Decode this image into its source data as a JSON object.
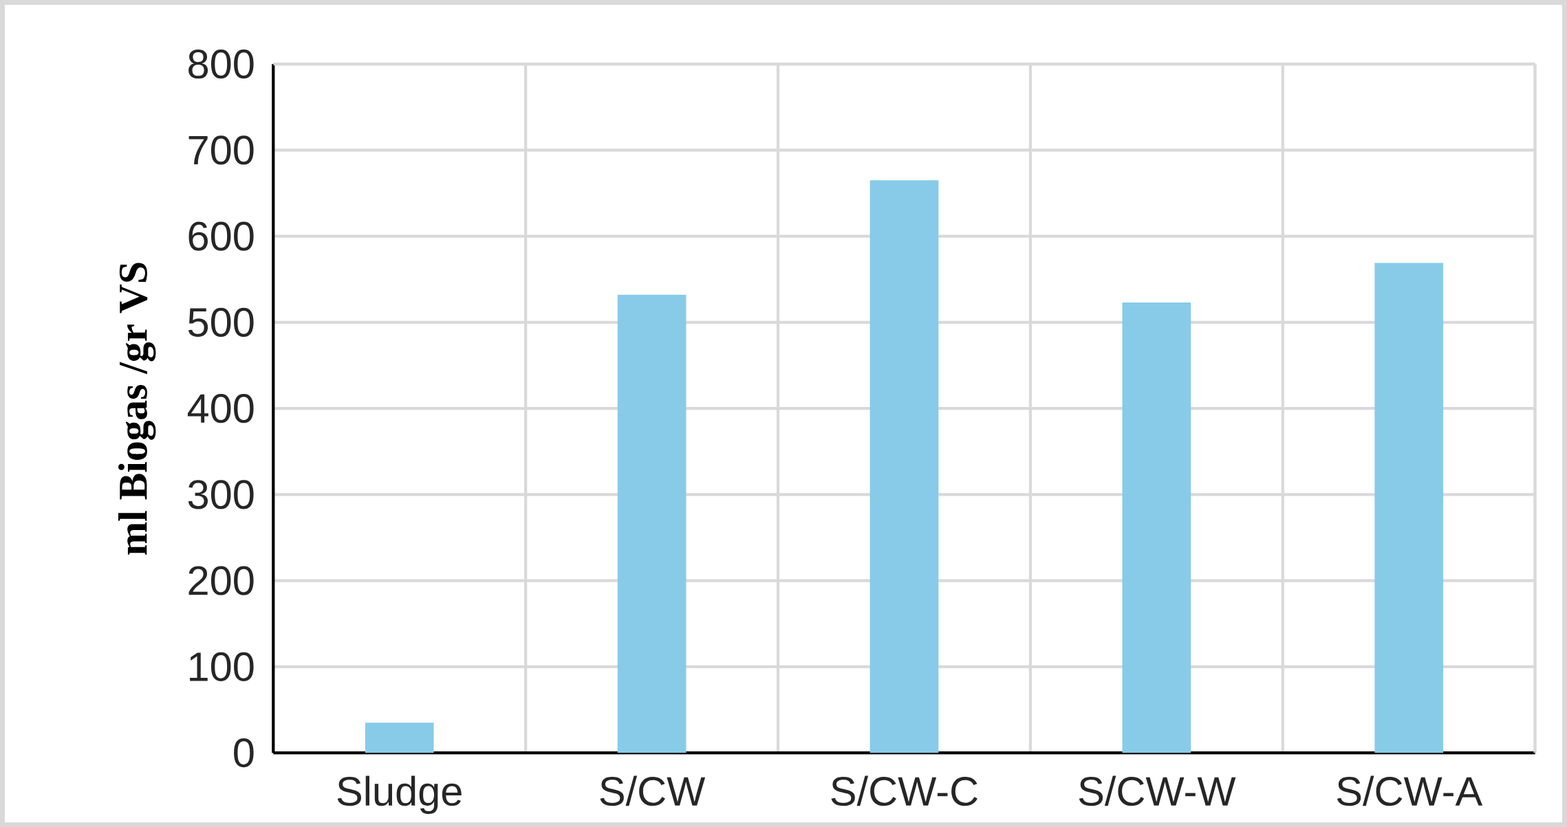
{
  "chart_data": {
    "type": "bar",
    "ylabel": "ml Biogas /gr VS",
    "categories": [
      "Sludge",
      "S/CW",
      "S/CW-C",
      "S/CW-W",
      "S/CW-A"
    ],
    "values": [
      35,
      532,
      665,
      523,
      569
    ],
    "color": "#87cbe9",
    "ylim": [
      0,
      800
    ],
    "yticks": [
      0,
      100,
      200,
      300,
      400,
      500,
      600,
      700,
      800
    ],
    "grid": true
  }
}
